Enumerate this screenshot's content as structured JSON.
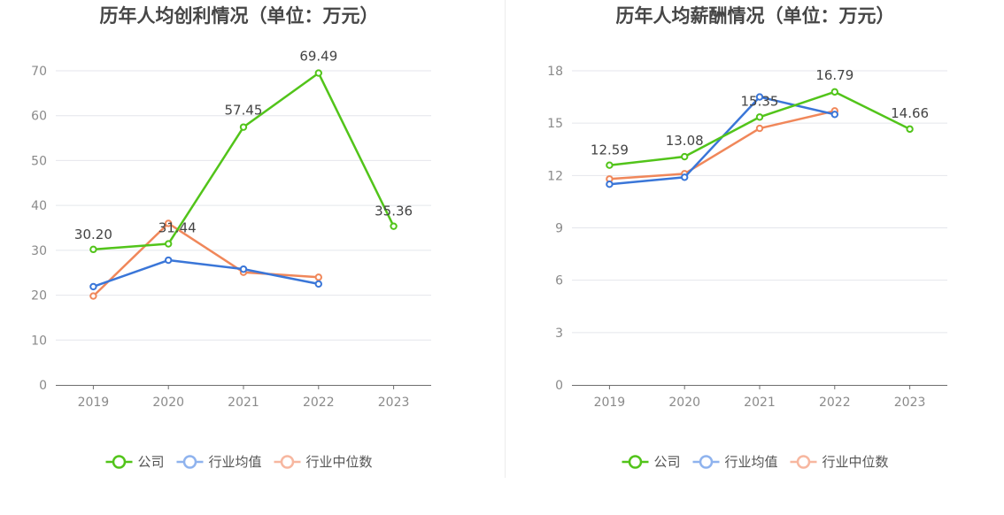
{
  "chart_data": [
    {
      "type": "line",
      "title": "历年人均创利情况（单位：万元）",
      "categories": [
        "2019",
        "2020",
        "2021",
        "2022",
        "2023"
      ],
      "ylim": [
        0,
        70
      ],
      "yticks": [
        0,
        10,
        20,
        30,
        40,
        50,
        60,
        70
      ],
      "grid": true,
      "legend_position": "bottom",
      "series": [
        {
          "name": "公司",
          "color": "#52c41a",
          "values": [
            30.2,
            31.44,
            57.45,
            69.49,
            35.36
          ],
          "labels": [
            "30.20",
            "31.44",
            "57.45",
            "69.49",
            "35.36"
          ]
        },
        {
          "name": "行业均值",
          "color": "#3a76d8",
          "values": [
            21.9,
            27.8,
            25.8,
            22.5,
            null
          ]
        },
        {
          "name": "行业中位数",
          "color": "#f0875a",
          "values": [
            19.8,
            36.0,
            25.1,
            24.0,
            null
          ]
        }
      ]
    },
    {
      "type": "line",
      "title": "历年人均薪酬情况（单位：万元）",
      "categories": [
        "2019",
        "2020",
        "2021",
        "2022",
        "2023"
      ],
      "ylim": [
        0,
        18
      ],
      "yticks": [
        0,
        3,
        6,
        9,
        12,
        15,
        18
      ],
      "grid": true,
      "legend_position": "bottom",
      "series": [
        {
          "name": "公司",
          "color": "#52c41a",
          "values": [
            12.59,
            13.08,
            15.35,
            16.79,
            14.66
          ],
          "labels": [
            "12.59",
            "13.08",
            "15.35",
            "16.79",
            "14.66"
          ]
        },
        {
          "name": "行业均值",
          "color": "#3a76d8",
          "values": [
            11.5,
            11.9,
            16.5,
            15.5,
            null
          ]
        },
        {
          "name": "行业中位数",
          "color": "#f0875a",
          "values": [
            11.8,
            12.1,
            14.7,
            15.7,
            null
          ]
        }
      ]
    }
  ],
  "legend_colors": {
    "公司": "#52c41a",
    "行业均值": "#8fb3ee",
    "行业中位数": "#f7b7a0"
  }
}
